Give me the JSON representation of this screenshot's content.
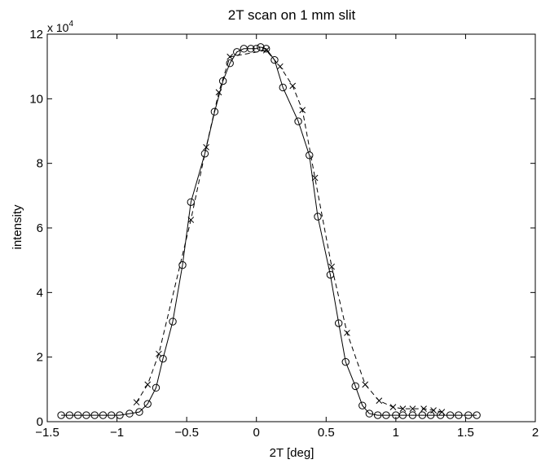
{
  "chart_data": {
    "type": "line",
    "title": "2T scan on 1 mm slit",
    "xlabel": "2T [deg]",
    "ylabel": "intensity",
    "y_exponent_label": "x 10",
    "y_exponent_power": "4",
    "xlim": [
      -1.5,
      2
    ],
    "ylim": [
      0,
      12
    ],
    "xticks": [
      -1.5,
      -1,
      -0.5,
      0,
      0.5,
      1,
      1.5,
      2
    ],
    "xtick_labels": [
      "−1.5",
      "−1",
      "−0.5",
      "0",
      "0.5",
      "1",
      "1.5",
      "2"
    ],
    "yticks": [
      0,
      2,
      4,
      6,
      8,
      10,
      12
    ],
    "ytick_labels": [
      "0",
      "2",
      "4",
      "6",
      "8",
      "10",
      "12"
    ],
    "grid": false,
    "series": [
      {
        "marker": "circle",
        "line_style": "solid",
        "color": "#000000",
        "x": [
          -1.4,
          -1.34,
          -1.28,
          -1.22,
          -1.16,
          -1.1,
          -1.04,
          -0.98,
          -0.91,
          -0.84,
          -0.78,
          -0.72,
          -0.67,
          -0.6,
          -0.53,
          -0.47,
          -0.37,
          -0.3,
          -0.24,
          -0.19,
          -0.14,
          -0.09,
          -0.04,
          0.0,
          0.03,
          0.07,
          0.13,
          0.19,
          0.3,
          0.38,
          0.44,
          0.53,
          0.59,
          0.64,
          0.71,
          0.76,
          0.81,
          0.87,
          0.93,
          1.0,
          1.05,
          1.12,
          1.19,
          1.25,
          1.32,
          1.39,
          1.45,
          1.52,
          1.58
        ],
        "y": [
          0.2,
          0.2,
          0.2,
          0.2,
          0.2,
          0.2,
          0.2,
          0.2,
          0.25,
          0.3,
          0.55,
          1.05,
          1.95,
          3.1,
          4.85,
          6.8,
          8.3,
          9.6,
          10.55,
          11.1,
          11.45,
          11.55,
          11.55,
          11.55,
          11.6,
          11.55,
          11.2,
          10.35,
          9.3,
          8.25,
          6.35,
          4.55,
          3.05,
          1.85,
          1.1,
          0.5,
          0.25,
          0.2,
          0.2,
          0.2,
          0.2,
          0.2,
          0.2,
          0.2,
          0.2,
          0.2,
          0.2,
          0.2,
          0.2
        ]
      },
      {
        "marker": "x",
        "line_style": "dashed",
        "color": "#000000",
        "x": [
          -0.86,
          -0.78,
          -0.7,
          -0.47,
          -0.36,
          -0.27,
          -0.19,
          0.07,
          0.17,
          0.26,
          0.33,
          0.42,
          0.54,
          0.65,
          0.78,
          0.88,
          0.98,
          1.05,
          1.12,
          1.2,
          1.27,
          1.33
        ],
        "y": [
          0.6,
          1.15,
          2.1,
          6.25,
          8.5,
          10.2,
          11.3,
          11.5,
          11.0,
          10.4,
          9.65,
          7.55,
          4.8,
          2.75,
          1.15,
          0.65,
          0.45,
          0.4,
          0.4,
          0.4,
          0.35,
          0.3
        ]
      }
    ]
  }
}
